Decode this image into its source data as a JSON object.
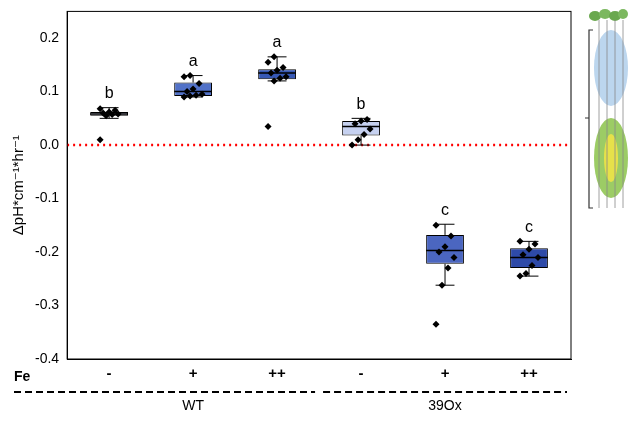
{
  "chart_data": {
    "type": "box",
    "y_label": "ΔpH*cm⁻¹*hr⁻¹",
    "x_label": "Fe",
    "categories": [
      "-",
      "+",
      "++",
      "-",
      "+",
      "++"
    ],
    "group_labels": [
      "WT",
      "WT",
      "WT",
      "39Ox",
      "39Ox",
      "39Ox"
    ],
    "colors": [
      "#d3dcf0",
      "#5272c8",
      "#3658b5",
      "#c6d1f0",
      "#4b66c0",
      "#2e4aa8"
    ],
    "marker": "diamond",
    "boxes": [
      {
        "whisker_low": 0.05,
        "q1": 0.055,
        "median": 0.058,
        "q3": 0.062,
        "whisker_high": 0.07,
        "points": [
          0.01,
          0.055,
          0.057,
          0.058,
          0.06,
          0.062,
          0.065,
          0.068
        ]
      },
      {
        "whisker_low": 0.09,
        "q1": 0.092,
        "median": 0.1,
        "q3": 0.117,
        "whisker_high": 0.13,
        "points": [
          0.09,
          0.092,
          0.093,
          0.095,
          0.1,
          0.105,
          0.115,
          0.128,
          0.13
        ]
      },
      {
        "whisker_low": 0.12,
        "q1": 0.123,
        "median": 0.135,
        "q3": 0.142,
        "whisker_high": 0.165,
        "points": [
          0.035,
          0.12,
          0.125,
          0.128,
          0.135,
          0.14,
          0.145,
          0.155,
          0.165
        ]
      },
      {
        "whisker_low": 0.0,
        "q1": 0.018,
        "median": 0.035,
        "q3": 0.045,
        "whisker_high": 0.05,
        "points": [
          0.0,
          0.01,
          0.02,
          0.03,
          0.04,
          0.045,
          0.048
        ]
      },
      {
        "whisker_low": -0.262,
        "q1": -0.222,
        "median": -0.197,
        "q3": -0.168,
        "whisker_high": -0.148,
        "points": [
          -0.335,
          -0.262,
          -0.23,
          -0.21,
          -0.2,
          -0.19,
          -0.17,
          -0.15
        ]
      },
      {
        "whisker_low": -0.245,
        "q1": -0.23,
        "median": -0.21,
        "q3": -0.193,
        "whisker_high": -0.18,
        "points": [
          -0.245,
          -0.24,
          -0.225,
          -0.21,
          -0.205,
          -0.195,
          -0.185,
          -0.18
        ]
      }
    ],
    "letters": [
      "b",
      "a",
      "a",
      "b",
      "c",
      "c"
    ],
    "reference_line": {
      "value": 0,
      "color": "#ff0000",
      "line_style": "dotted"
    },
    "ylim": [
      -0.4,
      0.25
    ],
    "yticks": [
      -0.4,
      -0.3,
      -0.2,
      -0.1,
      {
        "value": 0,
        "label": "0.0"
      },
      0.1,
      0.2
    ],
    "grid": false
  }
}
